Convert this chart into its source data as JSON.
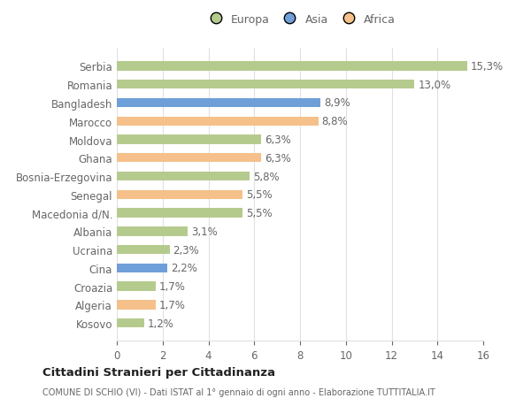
{
  "categories": [
    "Kosovo",
    "Algeria",
    "Croazia",
    "Cina",
    "Ucraina",
    "Albania",
    "Macedonia d/N.",
    "Senegal",
    "Bosnia-Erzegovina",
    "Ghana",
    "Moldova",
    "Marocco",
    "Bangladesh",
    "Romania",
    "Serbia"
  ],
  "values": [
    1.2,
    1.7,
    1.7,
    2.2,
    2.3,
    3.1,
    5.5,
    5.5,
    5.8,
    6.3,
    6.3,
    8.8,
    8.9,
    13.0,
    15.3
  ],
  "colors": [
    "#b5cb8e",
    "#f5c08a",
    "#b5cb8e",
    "#6f9fd8",
    "#b5cb8e",
    "#b5cb8e",
    "#b5cb8e",
    "#f5c08a",
    "#b5cb8e",
    "#f5c08a",
    "#b5cb8e",
    "#f5c08a",
    "#6f9fd8",
    "#b5cb8e",
    "#b5cb8e"
  ],
  "legend_labels": [
    "Europa",
    "Asia",
    "Africa"
  ],
  "legend_colors": [
    "#b5cb8e",
    "#6f9fd8",
    "#f5c08a"
  ],
  "xlim": [
    0,
    16
  ],
  "xticks": [
    0,
    2,
    4,
    6,
    8,
    10,
    12,
    14,
    16
  ],
  "title": "Cittadini Stranieri per Cittadinanza",
  "subtitle": "COMUNE DI SCHIO (VI) - Dati ISTAT al 1° gennaio di ogni anno - Elaborazione TUTTITALIA.IT",
  "bar_height": 0.5,
  "background_color": "#ffffff",
  "grid_color": "#e0e0e0",
  "text_color": "#666666",
  "label_fontsize": 8.5,
  "value_fontsize": 8.5
}
